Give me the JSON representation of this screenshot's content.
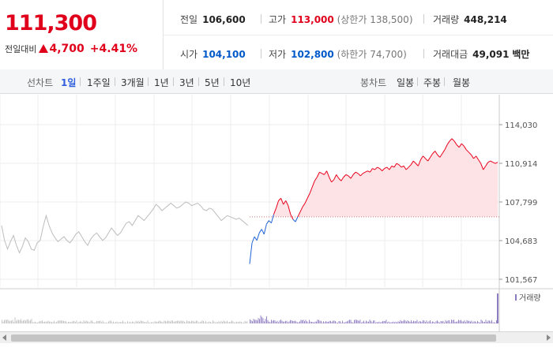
{
  "quote": {
    "price": "111,300",
    "change_label": "전일대비",
    "change": "4,700",
    "change_pct": "+4.41%"
  },
  "stats": {
    "prev_close_label": "전일",
    "prev_close": "106,600",
    "high_label": "고가",
    "high": "113,000",
    "upper_limit": "(상한가 138,500)",
    "volume_label": "거래량",
    "volume": "448,214",
    "open_label": "시가",
    "open": "104,100",
    "low_label": "저가",
    "low": "102,800",
    "lower_limit": "(하한가 74,700)",
    "amount_label": "거래대금",
    "amount": "49,091",
    "amount_unit": "백만"
  },
  "periods": {
    "line_label": "선차트",
    "line": [
      "1일",
      "1주일",
      "3개월",
      "1년",
      "3년",
      "5년",
      "10년"
    ],
    "selected": "1일",
    "candle_label": "봉차트",
    "candle": [
      "일봉",
      "주봉",
      "월봉"
    ]
  },
  "chart_data": {
    "type": "line",
    "y_ticks": [
      "114,030",
      "110,914",
      "107,799",
      "104,683",
      "101,567"
    ],
    "ylim": [
      101567,
      114030
    ],
    "baseline": 106600,
    "volume_label": "거래량",
    "colors": {
      "up": "#e8001c",
      "down": "#1f63d6",
      "prev_day": "#bdbdbd",
      "up_fill": "#fde3e5"
    },
    "prev_day_series": [
      105900,
      104700,
      104000,
      104600,
      105100,
      104300,
      103700,
      104200,
      104900,
      104600,
      104000,
      103900,
      104500,
      104700,
      105800,
      106700,
      105900,
      105300,
      104900,
      104600,
      104800,
      105000,
      104700,
      104500,
      104800,
      105200,
      105400,
      105000,
      104600,
      104300,
      104800,
      105100,
      105300,
      105000,
      104700,
      104900,
      105300,
      105700,
      105400,
      105100,
      105300,
      105700,
      106100,
      106200,
      105900,
      106300,
      106700,
      106500,
      106300,
      106600,
      106900,
      107200,
      107600,
      107400,
      107100,
      107300,
      107500,
      107700,
      107500,
      107300,
      107400,
      107600,
      107800,
      107700,
      107500,
      107600,
      107700,
      107500,
      107200,
      107100,
      107300,
      107200,
      106900,
      106600,
      106300,
      106500,
      106700,
      106600,
      106500,
      106400,
      106500,
      106300,
      106100,
      105900
    ],
    "today_series": [
      102800,
      104500,
      105000,
      104700,
      105300,
      105600,
      105200,
      106000,
      106300,
      106100,
      106800,
      107300,
      107900,
      108100,
      107600,
      107900,
      107500,
      106800,
      106400,
      106200,
      106600,
      107000,
      107400,
      107700,
      108100,
      108500,
      109000,
      109500,
      109800,
      110200,
      110100,
      110000,
      110300,
      109800,
      109400,
      109600,
      110000,
      109700,
      109500,
      109800,
      110000,
      109900,
      109700,
      110000,
      110200,
      110100,
      109900,
      110100,
      110200,
      110300,
      110200,
      110500,
      110400,
      110600,
      110500,
      110300,
      110500,
      110600,
      110400,
      110700,
      110600,
      110900,
      110800,
      110600,
      110700,
      110400,
      110600,
      110800,
      111100,
      110900,
      110700,
      111200,
      111500,
      111300,
      111100,
      111400,
      111700,
      111900,
      111600,
      111400,
      111700,
      112000,
      112400,
      112700,
      112900,
      112700,
      112400,
      112200,
      112500,
      112300,
      112000,
      111800,
      111600,
      111300,
      111500,
      111200,
      110900,
      110400,
      110700,
      111000,
      111100,
      111000,
      110900,
      111000
    ]
  }
}
